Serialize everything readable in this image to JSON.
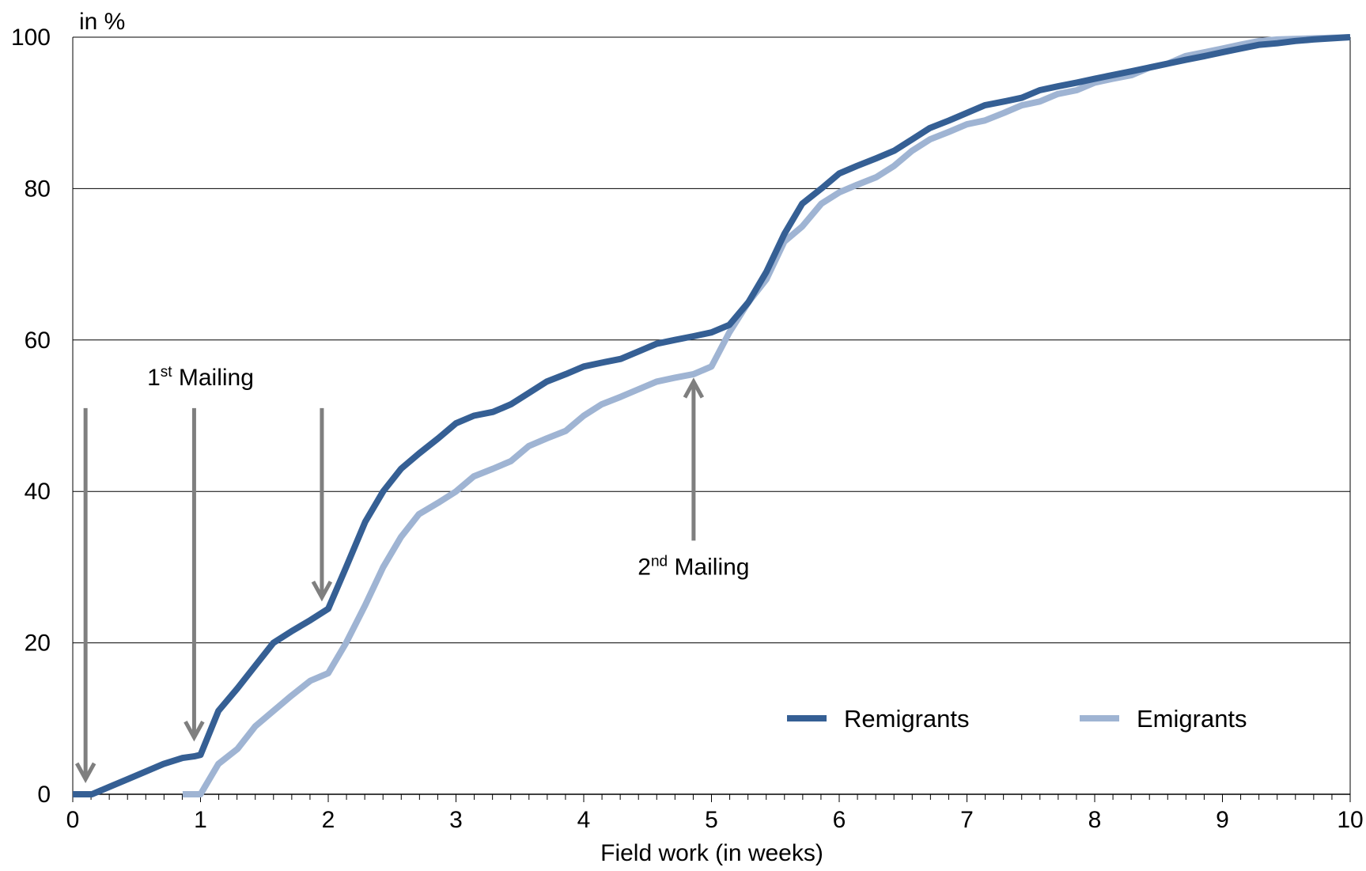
{
  "chart_data": {
    "type": "line",
    "ylabel": "in %",
    "xlabel": "Field work (in weeks)",
    "xlim": [
      0,
      10
    ],
    "ylim": [
      0,
      100
    ],
    "x_ticks": [
      "0",
      "1",
      "2",
      "3",
      "4",
      "5",
      "6",
      "7",
      "8",
      "9",
      "10"
    ],
    "y_ticks": [
      "0",
      "20",
      "40",
      "60",
      "80",
      "100"
    ],
    "grid": "horizontal",
    "legend_position": "bottom-right",
    "series": [
      {
        "name": "Remigrants",
        "color": "#355f94",
        "points": [
          [
            0,
            0
          ],
          [
            0.15,
            0
          ],
          [
            0.29,
            1
          ],
          [
            0.43,
            2
          ],
          [
            0.57,
            3
          ],
          [
            0.71,
            4
          ],
          [
            0.86,
            4.8
          ],
          [
            0.95,
            5
          ],
          [
            1.0,
            5.2
          ],
          [
            1.14,
            11
          ],
          [
            1.29,
            14
          ],
          [
            1.43,
            17
          ],
          [
            1.57,
            20
          ],
          [
            1.71,
            21.5
          ],
          [
            1.86,
            23
          ],
          [
            2.0,
            24.5
          ],
          [
            2.14,
            30
          ],
          [
            2.29,
            36
          ],
          [
            2.43,
            40
          ],
          [
            2.57,
            43
          ],
          [
            2.71,
            45
          ],
          [
            2.86,
            47
          ],
          [
            3.0,
            49
          ],
          [
            3.14,
            50
          ],
          [
            3.29,
            50.5
          ],
          [
            3.43,
            51.5
          ],
          [
            3.57,
            53
          ],
          [
            3.71,
            54.5
          ],
          [
            3.86,
            55.5
          ],
          [
            4.0,
            56.5
          ],
          [
            4.14,
            57
          ],
          [
            4.29,
            57.5
          ],
          [
            4.43,
            58.5
          ],
          [
            4.57,
            59.5
          ],
          [
            4.71,
            60
          ],
          [
            4.86,
            60.5
          ],
          [
            5.0,
            61
          ],
          [
            5.14,
            62
          ],
          [
            5.29,
            65
          ],
          [
            5.43,
            69
          ],
          [
            5.57,
            74
          ],
          [
            5.71,
            78
          ],
          [
            5.86,
            80
          ],
          [
            6.0,
            82
          ],
          [
            6.14,
            83
          ],
          [
            6.29,
            84
          ],
          [
            6.43,
            85
          ],
          [
            6.57,
            86.5
          ],
          [
            6.71,
            88
          ],
          [
            6.86,
            89
          ],
          [
            7.0,
            90
          ],
          [
            7.14,
            91
          ],
          [
            7.29,
            91.5
          ],
          [
            7.43,
            92
          ],
          [
            7.57,
            93
          ],
          [
            7.71,
            93.5
          ],
          [
            7.86,
            94
          ],
          [
            8.0,
            94.5
          ],
          [
            8.14,
            95
          ],
          [
            8.29,
            95.5
          ],
          [
            8.43,
            96
          ],
          [
            8.57,
            96.5
          ],
          [
            8.71,
            97
          ],
          [
            8.86,
            97.5
          ],
          [
            9.0,
            98
          ],
          [
            9.14,
            98.5
          ],
          [
            9.29,
            99
          ],
          [
            9.43,
            99.2
          ],
          [
            9.57,
            99.5
          ],
          [
            9.71,
            99.7
          ],
          [
            10,
            100
          ]
        ]
      },
      {
        "name": "Emigrants",
        "color": "#9fb4d3",
        "points": [
          [
            0.86,
            0
          ],
          [
            1.0,
            0
          ],
          [
            1.14,
            4
          ],
          [
            1.29,
            6
          ],
          [
            1.43,
            9
          ],
          [
            1.57,
            11
          ],
          [
            1.71,
            13
          ],
          [
            1.86,
            15
          ],
          [
            2.0,
            16
          ],
          [
            2.14,
            20
          ],
          [
            2.29,
            25
          ],
          [
            2.43,
            30
          ],
          [
            2.57,
            34
          ],
          [
            2.71,
            37
          ],
          [
            2.86,
            38.5
          ],
          [
            3.0,
            40
          ],
          [
            3.14,
            42
          ],
          [
            3.29,
            43
          ],
          [
            3.43,
            44
          ],
          [
            3.57,
            46
          ],
          [
            3.71,
            47
          ],
          [
            3.86,
            48
          ],
          [
            4.0,
            50
          ],
          [
            4.14,
            51.5
          ],
          [
            4.29,
            52.5
          ],
          [
            4.43,
            53.5
          ],
          [
            4.57,
            54.5
          ],
          [
            4.71,
            55
          ],
          [
            4.86,
            55.5
          ],
          [
            5.0,
            56.5
          ],
          [
            5.14,
            61
          ],
          [
            5.29,
            65
          ],
          [
            5.43,
            68
          ],
          [
            5.57,
            73
          ],
          [
            5.71,
            75
          ],
          [
            5.86,
            78
          ],
          [
            6.0,
            79.5
          ],
          [
            6.14,
            80.5
          ],
          [
            6.29,
            81.5
          ],
          [
            6.43,
            83
          ],
          [
            6.57,
            85
          ],
          [
            6.71,
            86.5
          ],
          [
            6.86,
            87.5
          ],
          [
            7.0,
            88.5
          ],
          [
            7.14,
            89
          ],
          [
            7.29,
            90
          ],
          [
            7.43,
            91
          ],
          [
            7.57,
            91.5
          ],
          [
            7.71,
            92.5
          ],
          [
            7.86,
            93
          ],
          [
            8.0,
            94
          ],
          [
            8.14,
            94.5
          ],
          [
            8.29,
            95
          ],
          [
            8.43,
            96
          ],
          [
            8.57,
            96.5
          ],
          [
            8.71,
            97.5
          ],
          [
            8.86,
            98
          ],
          [
            9.0,
            98.5
          ],
          [
            9.14,
            99
          ],
          [
            9.29,
            99.5
          ],
          [
            9.43,
            99.7
          ],
          [
            10,
            100
          ]
        ]
      }
    ],
    "annotations": [
      {
        "id": "mailing1",
        "text": "1",
        "sup": "st",
        "after": " Mailing",
        "at_x": 1.0,
        "anchor_y": 54
      },
      {
        "id": "mailing2",
        "text": "2",
        "sup": "nd",
        "after": " Mailing",
        "at_x": 4.86,
        "anchor_y": 29
      }
    ],
    "arrows": [
      {
        "id": "arrow-1",
        "x": 0.1,
        "y_from": 51,
        "y_to": 2,
        "direction": "down"
      },
      {
        "id": "arrow-2",
        "x": 0.95,
        "y_from": 51,
        "y_to": 7.5,
        "direction": "down"
      },
      {
        "id": "arrow-3",
        "x": 1.95,
        "y_from": 51,
        "y_to": 26,
        "direction": "down"
      },
      {
        "id": "arrow-4",
        "x": 4.86,
        "y_from": 33.5,
        "y_to": 54.5,
        "direction": "up"
      }
    ]
  }
}
